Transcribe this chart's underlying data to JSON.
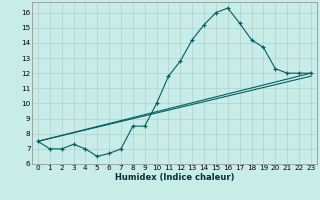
{
  "xlabel": "Humidex (Indice chaleur)",
  "bg_color": "#c8ece8",
  "grid_color": "#b0d0cc",
  "line_color": "#006060",
  "line1_x": [
    0,
    1,
    2,
    3,
    4,
    5,
    6,
    7,
    8,
    9,
    10,
    11,
    12,
    13,
    14,
    15,
    16,
    17,
    18,
    19,
    20,
    21,
    22,
    23
  ],
  "line1_y": [
    7.5,
    7.0,
    7.0,
    7.3,
    7.0,
    6.5,
    6.7,
    7.0,
    8.5,
    8.5,
    10.0,
    11.8,
    12.8,
    14.2,
    15.2,
    16.0,
    16.3,
    15.3,
    14.2,
    13.7,
    12.3,
    12.0,
    12.0,
    12.0
  ],
  "line2_x": [
    0,
    23
  ],
  "line2_y": [
    7.5,
    12.0
  ],
  "line3_x": [
    0,
    23
  ],
  "line3_y": [
    7.5,
    11.8
  ],
  "xlim": [
    -0.5,
    23.5
  ],
  "ylim": [
    6.0,
    16.7
  ],
  "yticks": [
    6,
    7,
    8,
    9,
    10,
    11,
    12,
    13,
    14,
    15,
    16
  ],
  "xticks": [
    0,
    1,
    2,
    3,
    4,
    5,
    6,
    7,
    8,
    9,
    10,
    11,
    12,
    13,
    14,
    15,
    16,
    17,
    18,
    19,
    20,
    21,
    22,
    23
  ],
  "tick_fontsize": 5.2,
  "xlabel_fontsize": 6.0
}
